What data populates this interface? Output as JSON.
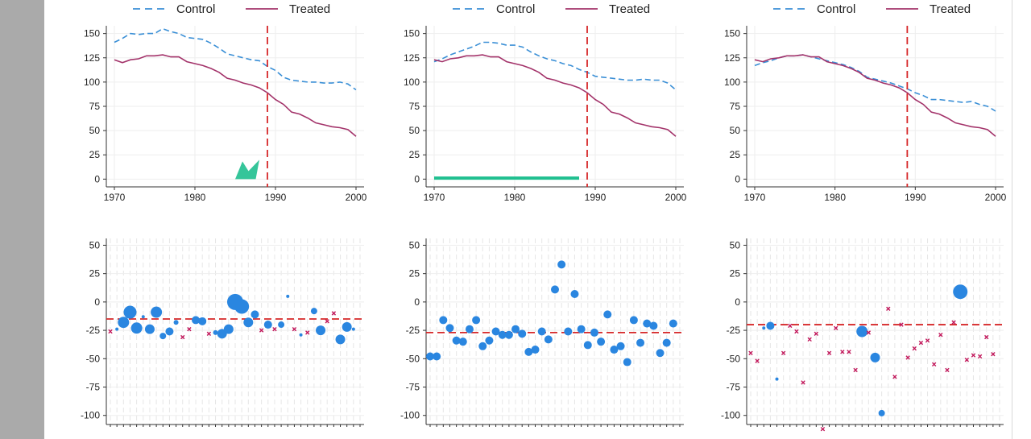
{
  "legend": {
    "control": "Control",
    "treated": "Treated"
  },
  "colors": {
    "control": "#3a8fd6",
    "treated": "#a3336a",
    "vline": "#d62728",
    "green": "#1fbf8f",
    "dot": "#2a86e0",
    "cross": "#c2185b"
  },
  "chart_data": [
    {
      "type": "line",
      "panel": "top-left",
      "x": [
        1970,
        1971,
        1972,
        1973,
        1974,
        1975,
        1976,
        1977,
        1978,
        1979,
        1980,
        1981,
        1982,
        1983,
        1984,
        1985,
        1986,
        1987,
        1988,
        1989,
        1990,
        1991,
        1992,
        1993,
        1994,
        1995,
        1996,
        1997,
        1998,
        1999,
        2000
      ],
      "series": [
        {
          "name": "Control",
          "values": [
            141,
            145,
            150,
            149,
            150,
            150,
            155,
            152,
            150,
            146,
            145,
            144,
            140,
            135,
            129,
            127,
            125,
            123,
            122,
            116,
            112,
            105,
            102,
            101,
            100,
            100,
            99,
            99,
            100,
            98,
            92
          ]
        },
        {
          "name": "Treated",
          "values": [
            123,
            120,
            123,
            124,
            127,
            127,
            128,
            126,
            126,
            121,
            119,
            117,
            114,
            110,
            104,
            102,
            99,
            97,
            94,
            89,
            82,
            77,
            69,
            67,
            63,
            58,
            56,
            54,
            53,
            51,
            44
          ]
        }
      ],
      "xticks": [
        1970,
        1980,
        1990,
        2000
      ],
      "yticks": [
        0,
        25,
        50,
        75,
        100,
        125,
        150
      ],
      "xlim": [
        1969,
        2001
      ],
      "ylim": [
        -8,
        158
      ],
      "vline": 1989,
      "legend_position": "top",
      "grid": true,
      "annotation": {
        "type": "shape",
        "x_range": [
          1985,
          1988
        ],
        "color": "green"
      }
    },
    {
      "type": "line",
      "panel": "top-middle",
      "x": [
        1970,
        1971,
        1972,
        1973,
        1974,
        1975,
        1976,
        1977,
        1978,
        1979,
        1980,
        1981,
        1982,
        1983,
        1984,
        1985,
        1986,
        1987,
        1988,
        1989,
        1990,
        1991,
        1992,
        1993,
        1994,
        1995,
        1996,
        1997,
        1998,
        1999,
        2000
      ],
      "series": [
        {
          "name": "Control",
          "values": [
            121,
            124,
            128,
            131,
            134,
            137,
            141,
            141,
            140,
            138,
            138,
            136,
            131,
            127,
            124,
            122,
            119,
            117,
            113,
            110,
            106,
            105,
            104,
            103,
            102,
            102,
            103,
            102,
            102,
            99,
            92
          ]
        },
        {
          "name": "Treated",
          "values": [
            123,
            121,
            124,
            125,
            127,
            127,
            128,
            126,
            126,
            121,
            119,
            117,
            114,
            110,
            104,
            102,
            99,
            97,
            94,
            89,
            82,
            77,
            69,
            67,
            63,
            58,
            56,
            54,
            53,
            51,
            44
          ]
        }
      ],
      "xticks": [
        1970,
        1980,
        1990,
        2000
      ],
      "yticks": [
        0,
        25,
        50,
        75,
        100,
        125,
        150
      ],
      "xlim": [
        1969,
        2001
      ],
      "ylim": [
        -8,
        158
      ],
      "vline": 1989,
      "legend_position": "top",
      "grid": true,
      "annotation": {
        "type": "bar",
        "x_range": [
          1970,
          1988
        ],
        "y": 1,
        "color": "green"
      }
    },
    {
      "type": "line",
      "panel": "top-right",
      "x": [
        1970,
        1971,
        1972,
        1973,
        1974,
        1975,
        1976,
        1977,
        1978,
        1979,
        1980,
        1981,
        1982,
        1983,
        1984,
        1985,
        1986,
        1987,
        1988,
        1989,
        1990,
        1991,
        1992,
        1993,
        1994,
        1995,
        1996,
        1997,
        1998,
        1999,
        2000
      ],
      "series": [
        {
          "name": "Control",
          "values": [
            117,
            120,
            122,
            125,
            127,
            127,
            128,
            126,
            124,
            122,
            120,
            118,
            115,
            111,
            105,
            103,
            101,
            99,
            96,
            93,
            89,
            86,
            82,
            82,
            81,
            80,
            79,
            80,
            77,
            75,
            70
          ]
        },
        {
          "name": "Treated",
          "values": [
            123,
            121,
            124,
            125,
            127,
            127,
            128,
            126,
            126,
            121,
            119,
            117,
            114,
            110,
            104,
            102,
            99,
            97,
            94,
            89,
            82,
            77,
            69,
            67,
            63,
            58,
            56,
            54,
            53,
            51,
            44
          ]
        }
      ],
      "xticks": [
        1970,
        1980,
        1990,
        2000
      ],
      "yticks": [
        0,
        25,
        50,
        75,
        100,
        125,
        150
      ],
      "xlim": [
        1969,
        2001
      ],
      "ylim": [
        -8,
        158
      ],
      "vline": 1989,
      "legend_position": "top",
      "grid": true
    },
    {
      "type": "scatter",
      "panel": "bottom-left",
      "yticks": [
        50,
        25,
        0,
        -25,
        -50,
        -75,
        -100
      ],
      "ylim": [
        -108,
        56
      ],
      "n_categories": 39,
      "hline": -15,
      "points": [
        {
          "i": 0,
          "y": -26,
          "m": "x"
        },
        {
          "i": 1,
          "y": -24,
          "m": "o",
          "s": 2
        },
        {
          "i": 2,
          "y": -18,
          "m": "o",
          "s": 7
        },
        {
          "i": 3,
          "y": -9,
          "m": "o",
          "s": 8
        },
        {
          "i": 4,
          "y": -23,
          "m": "o",
          "s": 7
        },
        {
          "i": 5,
          "y": -13,
          "m": "o",
          "s": 2
        },
        {
          "i": 6,
          "y": -24,
          "m": "o",
          "s": 6
        },
        {
          "i": 7,
          "y": -9,
          "m": "o",
          "s": 7
        },
        {
          "i": 8,
          "y": -30,
          "m": "o",
          "s": 4
        },
        {
          "i": 9,
          "y": -26,
          "m": "o",
          "s": 5
        },
        {
          "i": 10,
          "y": -18,
          "m": "o",
          "s": 3
        },
        {
          "i": 11,
          "y": -31,
          "m": "x"
        },
        {
          "i": 12,
          "y": -24,
          "m": "x"
        },
        {
          "i": 13,
          "y": -16,
          "m": "o",
          "s": 5
        },
        {
          "i": 14,
          "y": -17,
          "m": "o",
          "s": 5
        },
        {
          "i": 15,
          "y": -28,
          "m": "x"
        },
        {
          "i": 16,
          "y": -27,
          "m": "o",
          "s": 3
        },
        {
          "i": 17,
          "y": -28,
          "m": "o",
          "s": 6
        },
        {
          "i": 18,
          "y": -24,
          "m": "o",
          "s": 6
        },
        {
          "i": 19,
          "y": 0,
          "m": "o",
          "s": 10
        },
        {
          "i": 20,
          "y": -4,
          "m": "o",
          "s": 9
        },
        {
          "i": 21,
          "y": -18,
          "m": "o",
          "s": 6
        },
        {
          "i": 22,
          "y": -11,
          "m": "o",
          "s": 5
        },
        {
          "i": 23,
          "y": -25,
          "m": "x"
        },
        {
          "i": 24,
          "y": -20,
          "m": "o",
          "s": 5
        },
        {
          "i": 25,
          "y": -24,
          "m": "x"
        },
        {
          "i": 26,
          "y": -20,
          "m": "o",
          "s": 4
        },
        {
          "i": 27,
          "y": 5,
          "m": "o",
          "s": 2
        },
        {
          "i": 28,
          "y": -24,
          "m": "x"
        },
        {
          "i": 29,
          "y": -29,
          "m": "o",
          "s": 2
        },
        {
          "i": 30,
          "y": -27,
          "m": "x"
        },
        {
          "i": 31,
          "y": -8,
          "m": "o",
          "s": 4
        },
        {
          "i": 32,
          "y": -25,
          "m": "o",
          "s": 6
        },
        {
          "i": 33,
          "y": -17,
          "m": "x"
        },
        {
          "i": 34,
          "y": -10,
          "m": "x"
        },
        {
          "i": 35,
          "y": -33,
          "m": "o",
          "s": 6
        },
        {
          "i": 36,
          "y": -22,
          "m": "o",
          "s": 6
        },
        {
          "i": 37,
          "y": -24,
          "m": "o",
          "s": 2
        }
      ]
    },
    {
      "type": "scatter",
      "panel": "bottom-middle",
      "yticks": [
        50,
        25,
        0,
        -25,
        -50,
        -75,
        -100
      ],
      "ylim": [
        -108,
        56
      ],
      "n_categories": 39,
      "hline": -27,
      "points": [
        {
          "i": 0,
          "y": -48,
          "m": "o",
          "s": 5
        },
        {
          "i": 1,
          "y": -48,
          "m": "o",
          "s": 5
        },
        {
          "i": 2,
          "y": -16,
          "m": "o",
          "s": 5
        },
        {
          "i": 3,
          "y": -23,
          "m": "o",
          "s": 5
        },
        {
          "i": 4,
          "y": -34,
          "m": "o",
          "s": 5
        },
        {
          "i": 5,
          "y": -35,
          "m": "o",
          "s": 5
        },
        {
          "i": 6,
          "y": -24,
          "m": "o",
          "s": 5
        },
        {
          "i": 7,
          "y": -16,
          "m": "o",
          "s": 5
        },
        {
          "i": 8,
          "y": -39,
          "m": "o",
          "s": 5
        },
        {
          "i": 9,
          "y": -34,
          "m": "o",
          "s": 5
        },
        {
          "i": 10,
          "y": -26,
          "m": "o",
          "s": 5
        },
        {
          "i": 11,
          "y": -29,
          "m": "o",
          "s": 5
        },
        {
          "i": 12,
          "y": -29,
          "m": "o",
          "s": 5
        },
        {
          "i": 13,
          "y": -24,
          "m": "o",
          "s": 5
        },
        {
          "i": 14,
          "y": -28,
          "m": "o",
          "s": 5
        },
        {
          "i": 15,
          "y": -44,
          "m": "o",
          "s": 5
        },
        {
          "i": 16,
          "y": -42,
          "m": "o",
          "s": 5
        },
        {
          "i": 17,
          "y": -26,
          "m": "o",
          "s": 5
        },
        {
          "i": 18,
          "y": -33,
          "m": "o",
          "s": 5
        },
        {
          "i": 19,
          "y": 11,
          "m": "o",
          "s": 5
        },
        {
          "i": 20,
          "y": 33,
          "m": "o",
          "s": 5
        },
        {
          "i": 21,
          "y": -26,
          "m": "o",
          "s": 5
        },
        {
          "i": 22,
          "y": 7,
          "m": "o",
          "s": 5
        },
        {
          "i": 23,
          "y": -24,
          "m": "o",
          "s": 5
        },
        {
          "i": 24,
          "y": -38,
          "m": "o",
          "s": 5
        },
        {
          "i": 25,
          "y": -27,
          "m": "o",
          "s": 5
        },
        {
          "i": 26,
          "y": -35,
          "m": "o",
          "s": 5
        },
        {
          "i": 27,
          "y": -11,
          "m": "o",
          "s": 5
        },
        {
          "i": 28,
          "y": -42,
          "m": "o",
          "s": 5
        },
        {
          "i": 29,
          "y": -39,
          "m": "o",
          "s": 5
        },
        {
          "i": 30,
          "y": -53,
          "m": "o",
          "s": 5
        },
        {
          "i": 31,
          "y": -16,
          "m": "o",
          "s": 5
        },
        {
          "i": 32,
          "y": -36,
          "m": "o",
          "s": 5
        },
        {
          "i": 33,
          "y": -19,
          "m": "o",
          "s": 5
        },
        {
          "i": 34,
          "y": -21,
          "m": "o",
          "s": 5
        },
        {
          "i": 35,
          "y": -45,
          "m": "o",
          "s": 5
        },
        {
          "i": 36,
          "y": -36,
          "m": "o",
          "s": 5
        },
        {
          "i": 37,
          "y": -19,
          "m": "o",
          "s": 5
        }
      ]
    },
    {
      "type": "scatter",
      "panel": "bottom-right",
      "yticks": [
        50,
        25,
        0,
        -25,
        -50,
        -75,
        -100
      ],
      "ylim": [
        -108,
        56
      ],
      "n_categories": 39,
      "hline": -20,
      "points": [
        {
          "i": 0,
          "y": -45,
          "m": "x"
        },
        {
          "i": 1,
          "y": -52,
          "m": "x"
        },
        {
          "i": 2,
          "y": -23,
          "m": "o",
          "s": 2
        },
        {
          "i": 3,
          "y": -21,
          "m": "o",
          "s": 5
        },
        {
          "i": 4,
          "y": -68,
          "m": "o",
          "s": 2
        },
        {
          "i": 5,
          "y": -45,
          "m": "x"
        },
        {
          "i": 6,
          "y": -21,
          "m": "x"
        },
        {
          "i": 7,
          "y": -26,
          "m": "x"
        },
        {
          "i": 8,
          "y": -71,
          "m": "x"
        },
        {
          "i": 9,
          "y": -33,
          "m": "x"
        },
        {
          "i": 10,
          "y": -28,
          "m": "x"
        },
        {
          "i": 11,
          "y": -112,
          "m": "x"
        },
        {
          "i": 12,
          "y": -45,
          "m": "x"
        },
        {
          "i": 13,
          "y": -23,
          "m": "x"
        },
        {
          "i": 14,
          "y": -44,
          "m": "x"
        },
        {
          "i": 15,
          "y": -44,
          "m": "x"
        },
        {
          "i": 16,
          "y": -60,
          "m": "x"
        },
        {
          "i": 17,
          "y": -26,
          "m": "o",
          "s": 7
        },
        {
          "i": 18,
          "y": -27,
          "m": "x"
        },
        {
          "i": 19,
          "y": -49,
          "m": "o",
          "s": 6
        },
        {
          "i": 20,
          "y": -98,
          "m": "o",
          "s": 4
        },
        {
          "i": 21,
          "y": -6,
          "m": "x"
        },
        {
          "i": 22,
          "y": -66,
          "m": "x"
        },
        {
          "i": 23,
          "y": -20,
          "m": "x"
        },
        {
          "i": 24,
          "y": -49,
          "m": "x"
        },
        {
          "i": 25,
          "y": -41,
          "m": "x"
        },
        {
          "i": 26,
          "y": -36,
          "m": "x"
        },
        {
          "i": 27,
          "y": -34,
          "m": "x"
        },
        {
          "i": 28,
          "y": -55,
          "m": "x"
        },
        {
          "i": 29,
          "y": -29,
          "m": "x"
        },
        {
          "i": 30,
          "y": -60,
          "m": "x"
        },
        {
          "i": 31,
          "y": -18,
          "m": "x"
        },
        {
          "i": 32,
          "y": 9,
          "m": "o",
          "s": 9
        },
        {
          "i": 33,
          "y": -51,
          "m": "x"
        },
        {
          "i": 34,
          "y": -47,
          "m": "x"
        },
        {
          "i": 35,
          "y": -48,
          "m": "x"
        },
        {
          "i": 36,
          "y": -31,
          "m": "x"
        },
        {
          "i": 37,
          "y": -46,
          "m": "x"
        }
      ]
    }
  ]
}
